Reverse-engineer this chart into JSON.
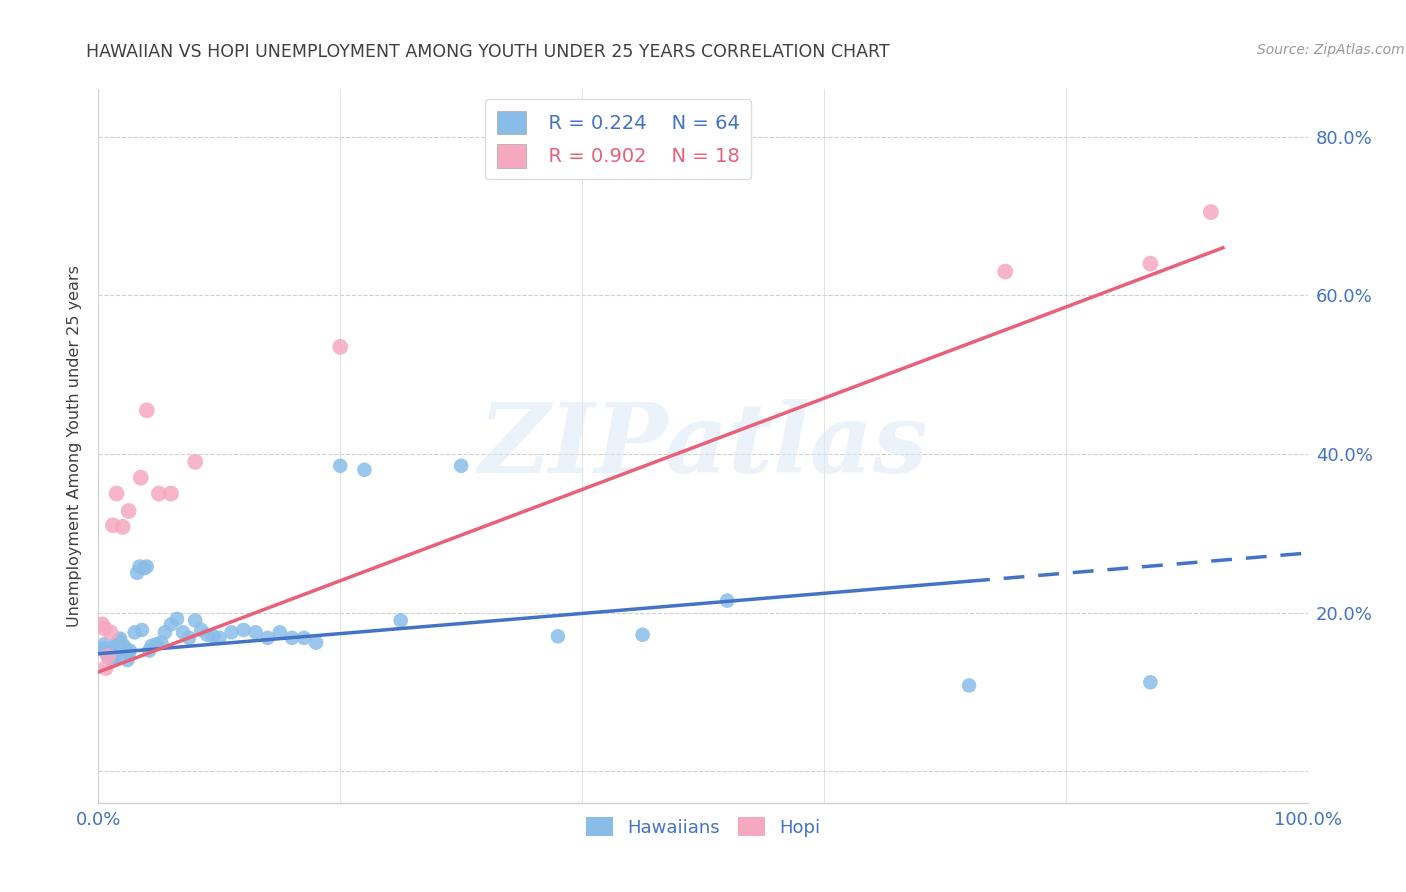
{
  "title": "HAWAIIAN VS HOPI UNEMPLOYMENT AMONG YOUTH UNDER 25 YEARS CORRELATION CHART",
  "source": "Source: ZipAtlas.com",
  "ylabel": "Unemployment Among Youth under 25 years",
  "xlim": [
    0.0,
    1.0
  ],
  "ylim": [
    -0.04,
    0.86
  ],
  "xtick_positions": [
    0.0,
    0.2,
    0.4,
    0.6,
    0.8,
    1.0
  ],
  "xticklabels": [
    "0.0%",
    "",
    "",
    "",
    "",
    "100.0%"
  ],
  "ytick_positions": [
    0.0,
    0.2,
    0.4,
    0.6,
    0.8
  ],
  "yticklabels": [
    "",
    "20.0%",
    "40.0%",
    "60.0%",
    "80.0%"
  ],
  "background_color": "#ffffff",
  "watermark": "ZIPatlas",
  "legend_r1": "R = 0.224",
  "legend_n1": "N = 64",
  "legend_r2": "R = 0.902",
  "legend_n2": "N = 18",
  "hawaiian_color": "#89bde8",
  "hopi_color": "#f5a8bf",
  "hawaiian_line_color": "#4472c4",
  "hopi_line_color": "#e8607a",
  "grid_color": "#d0d0d0",
  "title_color": "#404040",
  "tick_color": "#4472c4",
  "ylabel_color": "#404040",
  "haw_line_start_x": 0.0,
  "haw_line_end_solid_x": 0.72,
  "haw_line_end_x": 1.0,
  "haw_line_start_y": 0.148,
  "haw_line_end_y": 0.275,
  "hopi_line_start_x": 0.0,
  "hopi_line_end_x": 0.93,
  "hopi_line_start_y": 0.125,
  "hopi_line_end_y": 0.66,
  "haw_x": [
    0.005,
    0.005,
    0.006,
    0.007,
    0.008,
    0.009,
    0.01,
    0.01,
    0.011,
    0.012,
    0.013,
    0.013,
    0.014,
    0.015,
    0.015,
    0.016,
    0.017,
    0.018,
    0.018,
    0.019,
    0.02,
    0.021,
    0.022,
    0.023,
    0.024,
    0.025,
    0.026,
    0.03,
    0.032,
    0.034,
    0.036,
    0.038,
    0.04,
    0.042,
    0.044,
    0.048,
    0.052,
    0.055,
    0.06,
    0.065,
    0.07,
    0.075,
    0.08,
    0.085,
    0.09,
    0.095,
    0.1,
    0.11,
    0.12,
    0.13,
    0.14,
    0.15,
    0.16,
    0.17,
    0.18,
    0.2,
    0.22,
    0.25,
    0.3,
    0.38,
    0.45,
    0.52,
    0.72,
    0.87
  ],
  "haw_y": [
    0.16,
    0.155,
    0.15,
    0.148,
    0.145,
    0.143,
    0.142,
    0.148,
    0.146,
    0.144,
    0.142,
    0.14,
    0.153,
    0.155,
    0.16,
    0.163,
    0.165,
    0.167,
    0.161,
    0.152,
    0.154,
    0.158,
    0.155,
    0.15,
    0.14,
    0.148,
    0.152,
    0.175,
    0.25,
    0.258,
    0.178,
    0.256,
    0.258,
    0.152,
    0.158,
    0.16,
    0.162,
    0.175,
    0.185,
    0.192,
    0.175,
    0.168,
    0.19,
    0.178,
    0.172,
    0.17,
    0.168,
    0.175,
    0.178,
    0.175,
    0.168,
    0.175,
    0.168,
    0.168,
    0.162,
    0.385,
    0.38,
    0.19,
    0.385,
    0.17,
    0.172,
    0.215,
    0.108,
    0.112
  ],
  "hopi_x": [
    0.003,
    0.005,
    0.006,
    0.008,
    0.01,
    0.012,
    0.015,
    0.02,
    0.025,
    0.035,
    0.04,
    0.05,
    0.06,
    0.08,
    0.2,
    0.75,
    0.87,
    0.92
  ],
  "hopi_y": [
    0.185,
    0.18,
    0.13,
    0.145,
    0.175,
    0.31,
    0.35,
    0.308,
    0.328,
    0.37,
    0.455,
    0.35,
    0.35,
    0.39,
    0.535,
    0.63,
    0.64,
    0.705
  ]
}
